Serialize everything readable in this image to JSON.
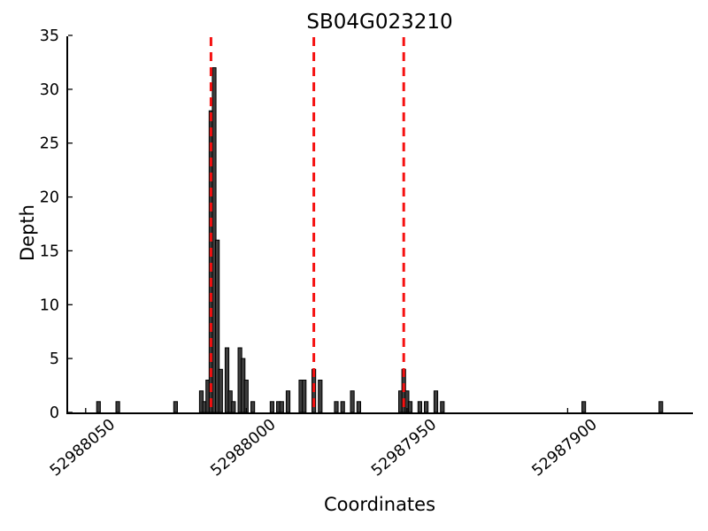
{
  "chart_data": {
    "type": "bar",
    "title": "SB04G023210",
    "xlabel": "Coordinates",
    "ylabel": "Depth",
    "grid": false,
    "legend": null,
    "background": "#ffffff",
    "bar_color": "#3d3d3d",
    "bar_edge_color": "#000000",
    "axis_color": "#000000",
    "x_axis_reversed": true,
    "xlim": [
      52988056,
      52987861
    ],
    "ylim": [
      0,
      35
    ],
    "xticks": [
      52988050,
      52988000,
      52987950,
      52987900
    ],
    "yticks": [
      0,
      5,
      10,
      15,
      20,
      25,
      30,
      35
    ],
    "xtick_rotation_deg": -40,
    "bars_format": [
      "coordinate",
      "depth"
    ],
    "bars": [
      [
        52988046,
        1
      ],
      [
        52988040,
        1
      ],
      [
        52988022,
        1
      ],
      [
        52988014,
        2
      ],
      [
        52988013,
        1
      ],
      [
        52988012,
        3
      ],
      [
        52988011,
        28
      ],
      [
        52988010,
        32
      ],
      [
        52988009,
        16
      ],
      [
        52988008,
        4
      ],
      [
        52988006,
        6
      ],
      [
        52988005,
        2
      ],
      [
        52988004,
        1
      ],
      [
        52988002,
        6
      ],
      [
        52988001,
        5
      ],
      [
        52988000,
        3
      ],
      [
        52987998,
        1
      ],
      [
        52987992,
        1
      ],
      [
        52987990,
        1
      ],
      [
        52987989,
        1
      ],
      [
        52987987,
        2
      ],
      [
        52987983,
        3
      ],
      [
        52987982,
        3
      ],
      [
        52987979,
        4
      ],
      [
        52987977,
        3
      ],
      [
        52987972,
        1
      ],
      [
        52987970,
        1
      ],
      [
        52987967,
        2
      ],
      [
        52987965,
        1
      ],
      [
        52987952,
        2
      ],
      [
        52987951,
        4
      ],
      [
        52987950,
        2
      ],
      [
        52987949,
        1
      ],
      [
        52987946,
        1
      ],
      [
        52987944,
        1
      ],
      [
        52987941,
        2
      ],
      [
        52987939,
        1
      ],
      [
        52987895,
        1
      ],
      [
        52987871,
        1
      ]
    ],
    "highlight_lines": {
      "style": "dashed",
      "color": "#f51111",
      "coordinates": [
        52988011,
        52987979,
        52987951
      ]
    }
  }
}
